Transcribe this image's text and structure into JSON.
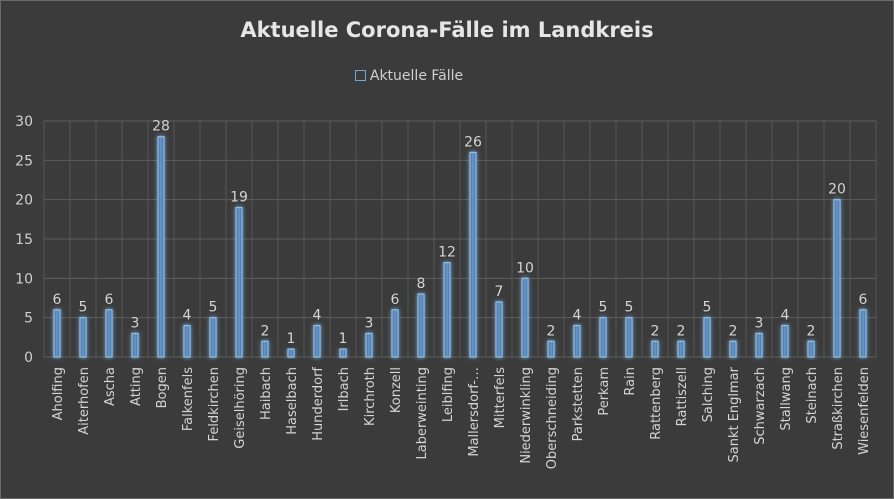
{
  "chart_data": {
    "type": "bar",
    "title": "Aktuelle Corona-Fälle im Landkreis",
    "legend_position": "top",
    "series": [
      {
        "name": "Aktuelle Fälle",
        "values": [
          6,
          5,
          6,
          3,
          28,
          4,
          5,
          19,
          2,
          1,
          4,
          1,
          3,
          6,
          8,
          12,
          26,
          7,
          10,
          2,
          4,
          5,
          5,
          2,
          2,
          5,
          2,
          3,
          4,
          2,
          20,
          6
        ]
      }
    ],
    "categories": [
      "Aholfing",
      "Aiterhofen",
      "Ascha",
      "Atting",
      "Bogen",
      "Falkenfels",
      "Feldkirchen",
      "Geiselhöring",
      "Haibach",
      "Haselbach",
      "Hunderdorf",
      "Irlbach",
      "Kirchroth",
      "Konzell",
      "Laberweinting",
      "Leiblfing",
      "Mallersdorf-…",
      "Mitterfels",
      "Niederwinkling",
      "Oberschneiding",
      "Parkstetten",
      "Perkam",
      "Rain",
      "Rattenberg",
      "Rattiszell",
      "Salching",
      "Sankt Englmar",
      "Schwarzach",
      "Stallwang",
      "Steinach",
      "Straßkirchen",
      "Wiesenfelden"
    ],
    "yticks": [
      "0",
      "5",
      "10",
      "15",
      "20",
      "25",
      "30"
    ],
    "ylim": [
      0,
      30
    ],
    "grid": true,
    "colors": {
      "bar_fill": "#5b7fa8",
      "bar_edge": "#8ec1ec",
      "glow": "#4a90d9"
    }
  }
}
